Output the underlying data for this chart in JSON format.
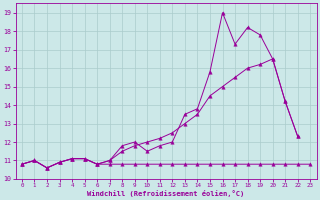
{
  "xlabel": "Windchill (Refroidissement éolien,°C)",
  "bg_color": "#cce8e8",
  "line_color": "#990099",
  "grid_color": "#aacccc",
  "xlim": [
    -0.5,
    23.5
  ],
  "ylim": [
    10,
    19.5
  ],
  "yticks": [
    10,
    11,
    12,
    13,
    14,
    15,
    16,
    17,
    18,
    19
  ],
  "xticks": [
    0,
    1,
    2,
    3,
    4,
    5,
    6,
    7,
    8,
    9,
    10,
    11,
    12,
    13,
    14,
    15,
    16,
    17,
    18,
    19,
    20,
    21,
    22,
    23
  ],
  "line1_x": [
    0,
    1,
    2,
    3,
    4,
    5,
    6,
    7,
    8,
    9,
    10,
    11,
    12,
    13,
    14,
    15,
    16,
    17,
    18,
    19,
    20,
    21,
    22,
    23
  ],
  "line1_y": [
    10.8,
    11.0,
    10.6,
    10.9,
    11.1,
    11.1,
    10.8,
    10.8,
    10.8,
    10.8,
    10.8,
    10.8,
    10.8,
    10.8,
    10.8,
    10.8,
    10.8,
    10.8,
    10.8,
    10.8,
    10.8,
    10.8,
    10.8,
    10.8
  ],
  "line2_x": [
    0,
    1,
    2,
    3,
    4,
    5,
    6,
    7,
    8,
    9,
    10,
    11,
    12,
    13,
    14,
    15,
    16,
    17,
    18,
    19,
    20,
    21,
    22
  ],
  "line2_y": [
    10.8,
    11.0,
    10.6,
    10.9,
    11.1,
    11.1,
    10.8,
    11.0,
    11.5,
    11.8,
    12.0,
    12.2,
    12.5,
    13.0,
    13.5,
    14.5,
    15.0,
    15.5,
    16.0,
    16.2,
    16.5,
    14.2,
    12.3
  ],
  "line3_x": [
    0,
    1,
    2,
    3,
    4,
    5,
    6,
    7,
    8,
    9,
    10,
    11,
    12,
    13,
    14,
    15,
    16,
    17,
    18,
    19,
    20,
    21,
    22
  ],
  "line3_y": [
    10.8,
    11.0,
    10.6,
    10.9,
    11.1,
    11.1,
    10.8,
    11.0,
    11.8,
    12.0,
    11.5,
    11.8,
    12.0,
    13.5,
    13.8,
    15.8,
    19.0,
    17.3,
    18.2,
    17.8,
    16.5,
    14.2,
    12.3
  ]
}
